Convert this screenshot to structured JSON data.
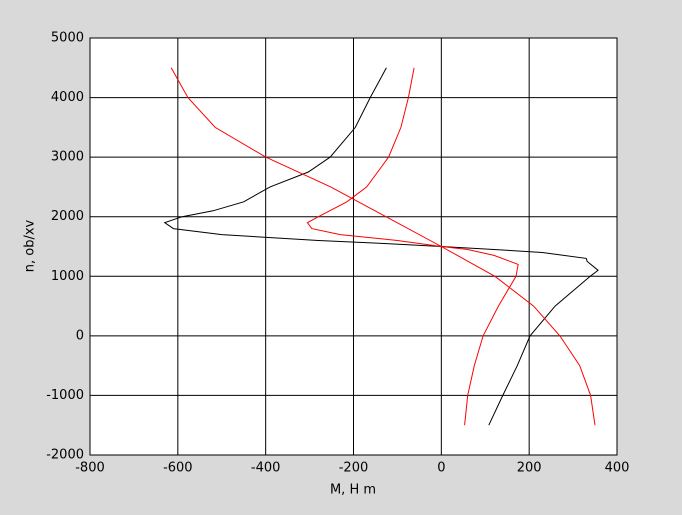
{
  "chart_data": {
    "type": "line",
    "xlabel": "M, H m",
    "ylabel": "n, ob/xv",
    "xlim": [
      -800,
      400
    ],
    "xticks": [
      -800,
      -600,
      -400,
      -200,
      0,
      200,
      400
    ],
    "ylim": [
      -2000,
      5000
    ],
    "yticks": [
      -2000,
      -1000,
      0,
      1000,
      2000,
      3000,
      4000,
      5000
    ],
    "grid": true,
    "series": [
      {
        "color": "#000000",
        "x": [
          108,
          140,
          173,
          202,
          259,
          339,
          357,
          332,
          330,
          230,
          120,
          0,
          -130,
          -280,
          -500,
          -610,
          -630,
          -590,
          -520,
          -450,
          -390,
          -303,
          -253,
          -196,
          -162,
          -125
        ],
        "values": [
          -1500,
          -1000,
          -500,
          0,
          500,
          1000,
          1100,
          1250,
          1300,
          1400,
          1450,
          1500,
          1550,
          1600,
          1700,
          1800,
          1900,
          2000,
          2100,
          2250,
          2500,
          2750,
          3000,
          3500,
          4000,
          4500
        ]
      },
      {
        "color": "#ff0000",
        "x": [
          53,
          60,
          75,
          95,
          130,
          170,
          175,
          120,
          60,
          0,
          -100,
          -230,
          -295,
          -305,
          -280,
          -215,
          -170,
          -120,
          -92,
          -75,
          -62
        ],
        "values": [
          -1500,
          -1000,
          -500,
          0,
          500,
          1000,
          1200,
          1350,
          1450,
          1500,
          1600,
          1700,
          1800,
          1900,
          2000,
          2250,
          2500,
          3000,
          3500,
          4000,
          4500
        ]
      },
      {
        "color": "#ff0000",
        "x": [
          350,
          340,
          315,
          270,
          210,
          122,
          0,
          -126,
          -252,
          -400,
          -515,
          -577,
          -615
        ],
        "values": [
          -1500,
          -1000,
          -500,
          0,
          500,
          1000,
          1500,
          2000,
          2500,
          3000,
          3500,
          4000,
          4500
        ]
      }
    ]
  }
}
